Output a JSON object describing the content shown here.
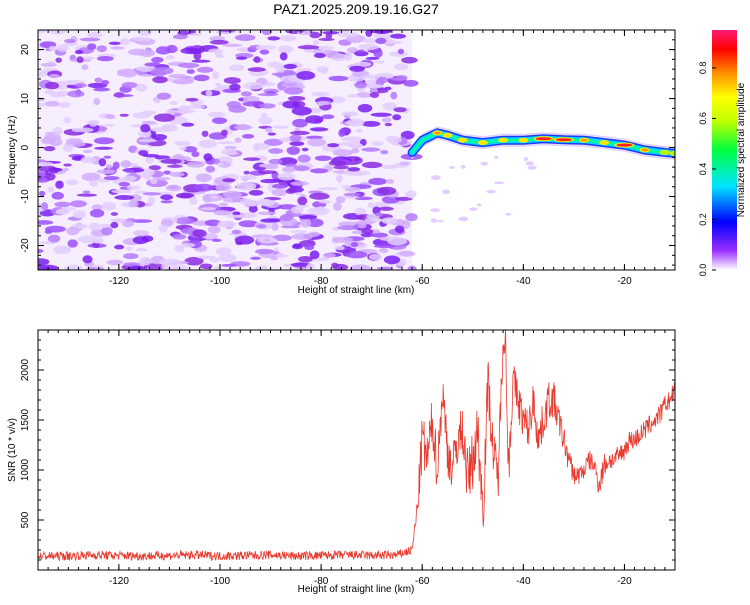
{
  "figure_title": "PAZ1.2025.209.19.16.G27",
  "colors": {
    "snr_line": "#e83b2f",
    "scatter_purple": "#8a2be2",
    "spectrum_ribbon": "#2aa8ff",
    "spectrum_peak": "#ff3b30",
    "colorbar": [
      "#7b00ff",
      "#0000ff",
      "#00bfff",
      "#00ffbf",
      "#00ff00",
      "#bfff00",
      "#ffff00",
      "#ffbf00",
      "#ff6000",
      "#ff0000",
      "#ff007f"
    ]
  },
  "chart_data": [
    {
      "type": "heatmap",
      "xlabel": "Height of straight line (km)",
      "ylabel": "Frequency (Hz)",
      "xlim": [
        -136,
        -10
      ],
      "ylim": [
        -25,
        24
      ],
      "x_ticks": [
        -120,
        -100,
        -80,
        -60,
        -40,
        -20
      ],
      "y_ticks": [
        20,
        10,
        0,
        -10,
        -20
      ],
      "colorbar": {
        "label": "Normalized spectral amplitude",
        "range": [
          0.0,
          0.95
        ],
        "ticks": [
          0.0,
          0.2,
          0.4,
          0.6,
          0.8
        ],
        "tick_labels": [
          "0.0",
          "0.2",
          "0.4",
          "0.6",
          "0.8"
        ]
      },
      "noise_region_x": [
        -136,
        -62
      ],
      "signal_ridge": {
        "x": [
          -62,
          -60,
          -57,
          -55,
          -52,
          -48,
          -44,
          -40,
          -36,
          -32,
          -28,
          -24,
          -20,
          -16,
          -12,
          -10
        ],
        "y": [
          -1.0,
          1.5,
          3.0,
          2.5,
          1.5,
          1.0,
          1.5,
          1.5,
          1.8,
          1.6,
          1.5,
          1.0,
          0.5,
          -0.5,
          -1.0,
          -1.2
        ],
        "peak_amplitude": [
          0.15,
          0.4,
          0.7,
          0.6,
          0.55,
          0.6,
          0.55,
          0.6,
          0.85,
          0.9,
          0.7,
          0.6,
          0.85,
          0.75,
          0.5,
          0.45
        ]
      }
    },
    {
      "type": "line",
      "xlabel": "Height of straight line (km)",
      "ylabel": "SNR (10 * v/v)",
      "xlim": [
        -136,
        -10
      ],
      "ylim": [
        0,
        2400
      ],
      "x_ticks": [
        -120,
        -100,
        -80,
        -60,
        -40,
        -20
      ],
      "y_ticks": [
        500,
        1000,
        1500,
        2000
      ],
      "series": [
        {
          "x": [
            -136,
            -130,
            -125,
            -120,
            -115,
            -110,
            -105,
            -100,
            -95,
            -90,
            -85,
            -80,
            -75,
            -70,
            -65,
            -62,
            -61,
            -60,
            -59,
            -58,
            -57,
            -56,
            -55,
            -54,
            -53,
            -52,
            -51,
            -50,
            -49,
            -48,
            -47,
            -46,
            -45,
            -44,
            -43.5,
            -43,
            -42,
            -41,
            -40,
            -39,
            -38,
            -37,
            -36,
            -35,
            -34,
            -33,
            -32,
            -31,
            -30,
            -29,
            -28,
            -27,
            -26,
            -25,
            -24,
            -23,
            -22,
            -21,
            -20,
            -19,
            -18,
            -17,
            -16,
            -15,
            -14,
            -13,
            -12,
            -11,
            -10
          ],
          "y": [
            140,
            140,
            150,
            145,
            140,
            145,
            150,
            140,
            145,
            150,
            140,
            145,
            150,
            145,
            150,
            200,
            600,
            1300,
            1100,
            1500,
            1000,
            1800,
            1200,
            1000,
            1300,
            1400,
            900,
            1100,
            1400,
            600,
            1900,
            1200,
            900,
            2350,
            2300,
            1000,
            1900,
            1700,
            1500,
            1400,
            1700,
            1300,
            1500,
            1700,
            1700,
            1500,
            1300,
            1100,
            950,
            950,
            1000,
            1100,
            1050,
            850,
            1050,
            1100,
            1100,
            1150,
            1200,
            1300,
            1300,
            1350,
            1400,
            1450,
            1500,
            1550,
            1650,
            1700,
            1800
          ],
          "spread": [
            90,
            90,
            90,
            90,
            90,
            90,
            90,
            90,
            90,
            90,
            90,
            90,
            90,
            90,
            90,
            90,
            250,
            600,
            500,
            500,
            500,
            500,
            500,
            500,
            500,
            500,
            600,
            600,
            600,
            700,
            500,
            500,
            500,
            400,
            300,
            600,
            400,
            400,
            400,
            400,
            400,
            400,
            400,
            400,
            400,
            300,
            300,
            250,
            200,
            200,
            200,
            200,
            200,
            250,
            250,
            200,
            200,
            200,
            200,
            200,
            200,
            200,
            200,
            200,
            200,
            200,
            200,
            200,
            200
          ]
        }
      ]
    }
  ]
}
